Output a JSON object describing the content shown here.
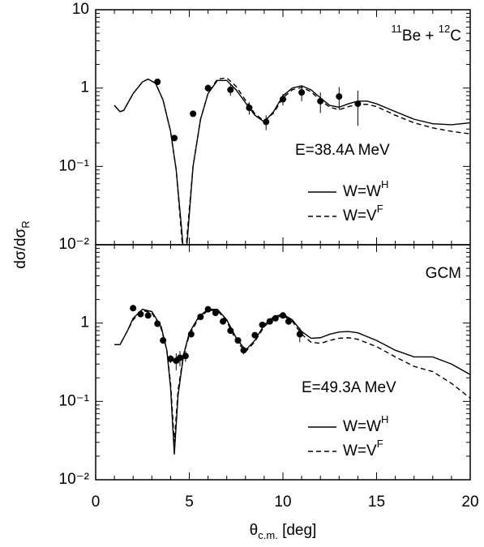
{
  "chart_data": [
    {
      "type": "line",
      "scale": "log",
      "ylabel": {
        "segments": [
          {
            "text": "dσ/dσ"
          },
          {
            "sub": "R"
          }
        ]
      },
      "xlim": [
        0,
        20
      ],
      "ylim": [
        0.01,
        10
      ],
      "yticks": [
        10,
        1,
        {
          "value": 0.1,
          "label": "10⁻¹"
        },
        {
          "value": 0.01,
          "label": "10⁻²"
        }
      ],
      "legend": "lower right",
      "annotations": [
        {
          "segments": [
            {
              "sup": "11"
            },
            {
              "text": "Be + "
            },
            {
              "sup": "12"
            },
            {
              "text": "C"
            }
          ]
        },
        {
          "segments": [
            {
              "text": "E=38.4A MeV"
            }
          ]
        }
      ],
      "series": [
        {
          "name": [
            {
              "text": "W=W"
            },
            {
              "sup": "H"
            }
          ],
          "style": "solid",
          "color": "#000000",
          "x": [
            1.0,
            1.3,
            1.5,
            2.0,
            2.5,
            2.8,
            3.2,
            3.6,
            4.0,
            4.3,
            4.6,
            4.75,
            4.9,
            5.2,
            5.6,
            6.0,
            6.5,
            7.0,
            7.5,
            8.0,
            8.5,
            9.0,
            9.5,
            10.0,
            10.5,
            11.0,
            11.5,
            12.0,
            12.5,
            13.0,
            13.5,
            14.0,
            14.5,
            15.0,
            16.0,
            17.0,
            18.0,
            19.0,
            20.0
          ],
          "values": [
            0.6,
            0.5,
            0.52,
            0.85,
            1.2,
            1.3,
            1.15,
            0.7,
            0.28,
            0.09,
            0.015,
            0.005,
            0.012,
            0.1,
            0.4,
            0.85,
            1.25,
            1.25,
            0.95,
            0.65,
            0.45,
            0.37,
            0.5,
            0.8,
            1.0,
            1.07,
            0.95,
            0.75,
            0.6,
            0.57,
            0.63,
            0.68,
            0.68,
            0.63,
            0.5,
            0.4,
            0.35,
            0.34,
            0.36
          ]
        },
        {
          "name": [
            {
              "text": "W=V"
            },
            {
              "sup": "F"
            }
          ],
          "style": "dashed",
          "color": "#000000",
          "x": [
            1.0,
            1.3,
            1.5,
            2.0,
            2.5,
            2.8,
            3.2,
            3.6,
            4.0,
            4.3,
            4.6,
            4.75,
            4.9,
            5.2,
            5.6,
            6.0,
            6.5,
            7.0,
            7.5,
            8.0,
            8.5,
            9.0,
            9.5,
            10.0,
            10.5,
            11.0,
            11.5,
            12.0,
            12.5,
            13.0,
            13.5,
            14.0,
            14.5,
            15.0,
            16.0,
            17.0,
            18.0,
            19.0,
            20.0
          ],
          "values": [
            0.6,
            0.5,
            0.52,
            0.85,
            1.2,
            1.3,
            1.15,
            0.7,
            0.28,
            0.09,
            0.012,
            0.005,
            0.015,
            0.1,
            0.4,
            0.85,
            1.3,
            1.35,
            1.05,
            0.7,
            0.47,
            0.38,
            0.48,
            0.75,
            0.95,
            1.02,
            0.9,
            0.7,
            0.57,
            0.53,
            0.58,
            0.62,
            0.62,
            0.58,
            0.45,
            0.36,
            0.31,
            0.28,
            0.26
          ]
        }
      ],
      "points": {
        "color": "#000000",
        "x": [
          3.3,
          4.2,
          5.2,
          6.0,
          7.2,
          8.2,
          9.1,
          10.0,
          11.0,
          12.0,
          13.0,
          14.0
        ],
        "values": [
          1.2,
          0.23,
          0.47,
          1.0,
          0.95,
          0.56,
          0.37,
          0.72,
          0.88,
          0.68,
          0.78,
          0.63
        ],
        "errors": [
          0.05,
          0.02,
          0.04,
          0.1,
          0.15,
          0.1,
          0.08,
          0.12,
          0.2,
          0.2,
          0.25,
          0.3
        ]
      }
    },
    {
      "type": "line",
      "scale": "log",
      "xlabel": {
        "segments": [
          {
            "text": "θ"
          },
          {
            "sub": "c.m."
          },
          {
            "text": " [deg]"
          }
        ]
      },
      "xlim": [
        0,
        20
      ],
      "xticks": [
        0,
        5,
        10,
        15,
        20
      ],
      "ylim": [
        0.01,
        10
      ],
      "yticks": [
        1,
        {
          "value": 0.1,
          "label": "10⁻¹"
        },
        {
          "value": 0.01,
          "label": "10⁻²"
        }
      ],
      "legend": "lower right",
      "annotations": [
        {
          "segments": [
            {
              "text": "GCM"
            }
          ]
        },
        {
          "segments": [
            {
              "text": "E=49.3A MeV"
            }
          ]
        }
      ],
      "series": [
        {
          "name": [
            {
              "text": "W=W"
            },
            {
              "sup": "H"
            }
          ],
          "style": "solid",
          "color": "#000000",
          "x": [
            1.0,
            1.3,
            1.7,
            2.0,
            2.5,
            3.0,
            3.5,
            3.8,
            4.0,
            4.2,
            4.4,
            4.7,
            5.0,
            5.5,
            6.0,
            6.5,
            7.0,
            7.5,
            8.0,
            8.5,
            9.0,
            9.5,
            10.0,
            10.5,
            11.0,
            11.5,
            12.0,
            12.5,
            13.0,
            13.5,
            14.0,
            15.0,
            16.0,
            17.0,
            18.0,
            19.0,
            20.0
          ],
          "values": [
            0.53,
            0.53,
            0.8,
            1.15,
            1.5,
            1.4,
            0.9,
            0.45,
            0.15,
            0.021,
            0.12,
            0.4,
            0.75,
            1.2,
            1.5,
            1.5,
            1.1,
            0.65,
            0.45,
            0.6,
            0.95,
            1.2,
            1.3,
            1.1,
            0.78,
            0.64,
            0.65,
            0.72,
            0.77,
            0.78,
            0.75,
            0.6,
            0.45,
            0.37,
            0.37,
            0.3,
            0.22
          ]
        },
        {
          "name": [
            {
              "text": "W=V"
            },
            {
              "sup": "F"
            }
          ],
          "style": "dashed",
          "color": "#000000",
          "x": [
            1.0,
            1.3,
            1.7,
            2.0,
            2.5,
            3.0,
            3.5,
            3.8,
            4.0,
            4.2,
            4.4,
            4.7,
            5.0,
            5.5,
            6.0,
            6.5,
            7.0,
            7.5,
            8.0,
            8.5,
            9.0,
            9.5,
            10.0,
            10.5,
            11.0,
            11.5,
            12.0,
            12.5,
            13.0,
            13.5,
            14.0,
            15.0,
            16.0,
            17.0,
            18.0,
            19.0,
            20.0
          ],
          "values": [
            0.53,
            0.53,
            0.8,
            1.1,
            1.45,
            1.35,
            0.85,
            0.45,
            0.17,
            0.03,
            0.14,
            0.4,
            0.7,
            1.15,
            1.45,
            1.45,
            1.05,
            0.6,
            0.43,
            0.58,
            0.9,
            1.15,
            1.25,
            1.05,
            0.72,
            0.57,
            0.55,
            0.6,
            0.64,
            0.65,
            0.62,
            0.5,
            0.37,
            0.28,
            0.24,
            0.17,
            0.11
          ]
        }
      ],
      "points": {
        "color": "#000000",
        "x": [
          2.0,
          2.4,
          2.8,
          3.3,
          3.6,
          4.0,
          4.3,
          4.5,
          4.8,
          5.1,
          5.6,
          6.0,
          6.4,
          6.8,
          7.2,
          7.6,
          7.9,
          8.5,
          8.9,
          9.3,
          9.6,
          10.0,
          10.3,
          10.9
        ],
        "values": [
          1.55,
          1.3,
          1.25,
          0.98,
          0.6,
          0.35,
          0.33,
          0.36,
          0.38,
          0.72,
          1.2,
          1.5,
          1.35,
          1.05,
          0.8,
          0.6,
          0.45,
          0.7,
          0.95,
          1.05,
          1.15,
          1.25,
          1.05,
          0.72
        ],
        "errors": [
          0.05,
          0.05,
          0.05,
          0.05,
          0.04,
          0.04,
          0.08,
          0.08,
          0.06,
          0.05,
          0.08,
          0.1,
          0.08,
          0.06,
          0.05,
          0.05,
          0.05,
          0.05,
          0.06,
          0.06,
          0.08,
          0.08,
          0.1,
          0.15
        ]
      }
    }
  ]
}
